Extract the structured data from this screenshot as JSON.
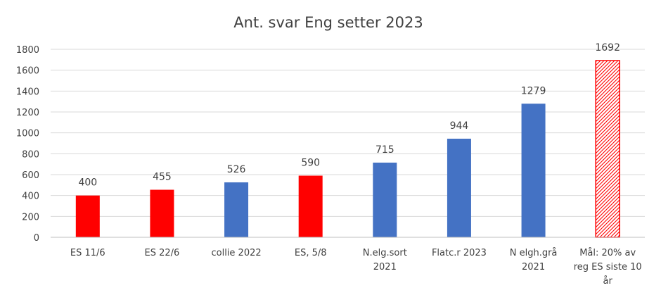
{
  "chart_data": {
    "type": "bar",
    "title": "Ant. svar Eng setter 2023",
    "xlabel": "",
    "ylabel": "",
    "ylim": [
      0,
      1800
    ],
    "yticks": [
      0,
      200,
      400,
      600,
      800,
      1000,
      1200,
      1400,
      1600,
      1800
    ],
    "grid": true,
    "legend": "none",
    "categories": [
      [
        "ES 11/6"
      ],
      [
        "ES 22/6"
      ],
      [
        "collie    2022"
      ],
      [
        "ES, 5/8"
      ],
      [
        "N.elg.sort",
        "2021"
      ],
      [
        "Flatc.r 2023"
      ],
      [
        "N elgh.grå",
        "2021"
      ],
      [
        "Mål: 20% av",
        "reg ES siste 10",
        "år"
      ]
    ],
    "values": [
      400,
      455,
      526,
      590,
      715,
      944,
      1279,
      1692
    ],
    "data_labels": [
      "400",
      "455",
      "526",
      "590",
      "715",
      "944",
      "1279",
      "1692"
    ],
    "bar_styles": [
      "solid-red",
      "solid-red",
      "solid-blue",
      "solid-red",
      "solid-blue",
      "solid-blue",
      "solid-blue",
      "hatched-red"
    ],
    "colors": {
      "red": "#ff0000",
      "blue": "#4472c4",
      "hatch": "#ff0000",
      "grid": "#d9d9d9",
      "axis": "#bfbfbf",
      "text": "#404040"
    }
  }
}
